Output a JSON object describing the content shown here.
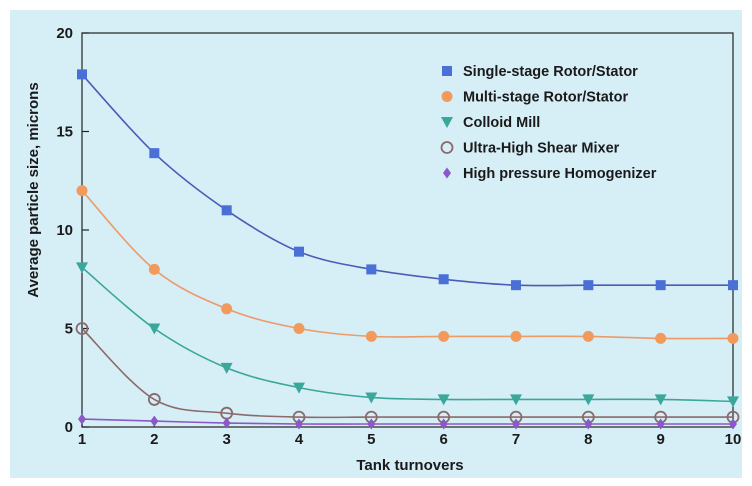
{
  "chart_data": {
    "type": "line",
    "title": "",
    "xlabel": "Tank turnovers",
    "ylabel": "Average particle size, microns",
    "xlim": [
      1,
      10
    ],
    "ylim": [
      0,
      20
    ],
    "x_ticks": [
      1,
      2,
      3,
      4,
      5,
      6,
      7,
      8,
      9,
      10
    ],
    "y_ticks": [
      0,
      5,
      10,
      15,
      20
    ],
    "grid": false,
    "legend_position": "top-right",
    "background_color": "#d6eef6",
    "x": [
      1,
      2,
      3,
      4,
      5,
      6,
      7,
      8,
      9,
      10
    ],
    "series": [
      {
        "name": "Single-stage Rotor/Stator",
        "marker": "square",
        "color": "#4a6fd6",
        "line_color": "#4a5cb8",
        "values": [
          17.9,
          13.9,
          11.0,
          8.9,
          8.0,
          7.5,
          7.2,
          7.2,
          7.2,
          7.2
        ]
      },
      {
        "name": "Multi-stage Rotor/Stator",
        "marker": "circle",
        "color": "#f29a5c",
        "line_color": "#ee9a68",
        "values": [
          12.0,
          8.0,
          6.0,
          5.0,
          4.6,
          4.6,
          4.6,
          4.6,
          4.5,
          4.5
        ]
      },
      {
        "name": "Colloid Mill",
        "marker": "triangle-down",
        "color": "#3aa79a",
        "line_color": "#3aa79a",
        "values": [
          8.1,
          5.0,
          3.0,
          2.0,
          1.5,
          1.4,
          1.4,
          1.4,
          1.4,
          1.3
        ]
      },
      {
        "name": "Ultra-High Shear Mixer",
        "marker": "circle-open",
        "color": "#8a6a6a",
        "line_color": "#8a6a6a",
        "values": [
          5.0,
          1.4,
          0.7,
          0.5,
          0.5,
          0.5,
          0.5,
          0.5,
          0.5,
          0.5
        ]
      },
      {
        "name": "High pressure Homogenizer",
        "marker": "diamond",
        "color": "#8a58c8",
        "line_color": "#8a58c8",
        "values": [
          0.4,
          0.3,
          0.2,
          0.15,
          0.15,
          0.15,
          0.15,
          0.15,
          0.15,
          0.15
        ]
      }
    ]
  }
}
